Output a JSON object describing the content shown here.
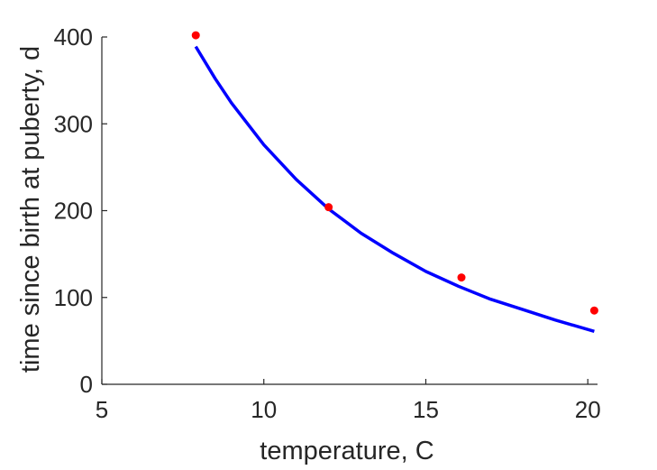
{
  "chart_data": {
    "type": "scatter",
    "title": "",
    "xlabel": "temperature, C",
    "ylabel": "time since birth at puberty, d",
    "xlim": [
      5,
      20.3
    ],
    "ylim": [
      0,
      400
    ],
    "xticks": [
      5,
      10,
      15,
      20
    ],
    "yticks": [
      0,
      100,
      200,
      300,
      400
    ],
    "xtick_labels": [
      "5",
      "10",
      "15",
      "20"
    ],
    "ytick_labels": [
      "0",
      "100",
      "200",
      "300",
      "400"
    ],
    "grid": false,
    "legend": "none",
    "series": [
      {
        "kind": "points",
        "color": "#ff0000",
        "x": [
          7.9,
          12.0,
          16.1,
          20.2
        ],
        "y": [
          402,
          204,
          123,
          85
        ]
      },
      {
        "kind": "line",
        "color": "#0000ff",
        "x": [
          7.9,
          8.5,
          9.0,
          10.0,
          11.0,
          12.0,
          13.0,
          14.0,
          15.0,
          16.0,
          17.0,
          18.0,
          19.0,
          20.2
        ],
        "y": [
          389,
          352,
          324,
          276,
          236,
          202,
          174,
          151,
          130,
          113,
          98,
          86,
          74,
          61
        ]
      }
    ]
  }
}
